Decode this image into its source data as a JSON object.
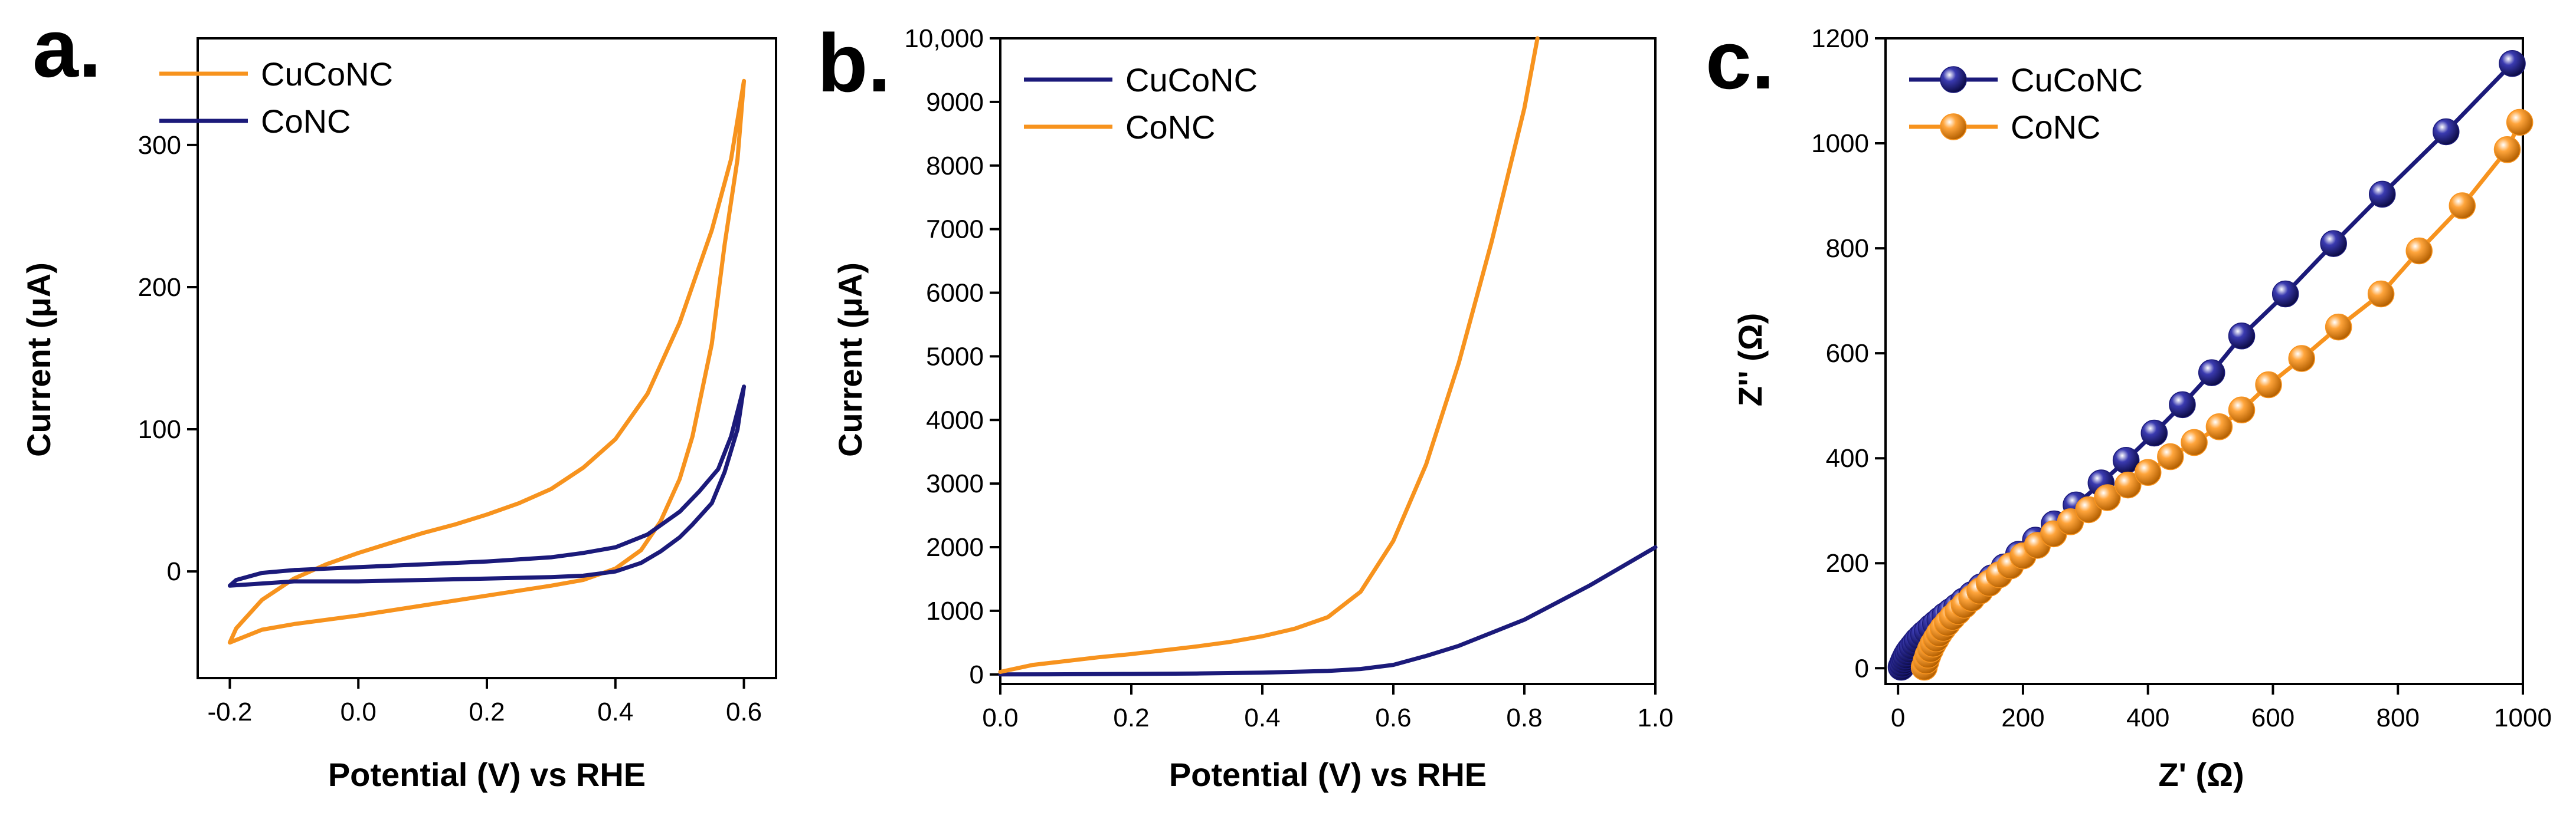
{
  "colors": {
    "orange": "#f7931e",
    "navy": "#1b1a7a",
    "axis": "#000000"
  },
  "chart_data": [
    {
      "type": "line",
      "panel_label": "a.",
      "title": "",
      "xlabel": "Potential (V) vs RHE",
      "ylabel": "Current (μA)",
      "xlim": [
        -0.25,
        0.65
      ],
      "ylim": [
        -75,
        375
      ],
      "x_ticks": [
        -0.2,
        0.0,
        0.2,
        0.4,
        0.6
      ],
      "x_tick_labels": [
        "-0.2",
        "0.0",
        "0.2",
        "0.4",
        "0.6"
      ],
      "y_ticks": [
        0,
        100,
        200,
        300
      ],
      "y_tick_labels": [
        "0",
        "100",
        "200",
        "300"
      ],
      "legend_position": "top-left",
      "series": [
        {
          "name": "CuCoNC",
          "color": "#f7931e",
          "points": [
            [
              -0.2,
              -50
            ],
            [
              -0.19,
              -40
            ],
            [
              -0.15,
              -20
            ],
            [
              -0.1,
              -5
            ],
            [
              -0.05,
              5
            ],
            [
              0.0,
              13
            ],
            [
              0.05,
              20
            ],
            [
              0.1,
              27
            ],
            [
              0.15,
              33
            ],
            [
              0.2,
              40
            ],
            [
              0.25,
              48
            ],
            [
              0.3,
              58
            ],
            [
              0.35,
              73
            ],
            [
              0.4,
              93
            ],
            [
              0.45,
              125
            ],
            [
              0.5,
              175
            ],
            [
              0.55,
              240
            ],
            [
              0.58,
              290
            ],
            [
              0.6,
              345
            ],
            [
              0.59,
              290
            ],
            [
              0.57,
              230
            ],
            [
              0.55,
              160
            ],
            [
              0.52,
              95
            ],
            [
              0.5,
              65
            ],
            [
              0.47,
              35
            ],
            [
              0.44,
              15
            ],
            [
              0.4,
              2
            ],
            [
              0.35,
              -6
            ],
            [
              0.3,
              -10
            ],
            [
              0.2,
              -17
            ],
            [
              0.1,
              -24
            ],
            [
              0.0,
              -31
            ],
            [
              -0.1,
              -37
            ],
            [
              -0.15,
              -41
            ],
            [
              -0.2,
              -50
            ]
          ]
        },
        {
          "name": "CoNC",
          "color": "#1b1a7a",
          "points": [
            [
              -0.2,
              -10
            ],
            [
              -0.19,
              -6
            ],
            [
              -0.15,
              -1
            ],
            [
              -0.1,
              1
            ],
            [
              0.0,
              3
            ],
            [
              0.1,
              5
            ],
            [
              0.2,
              7
            ],
            [
              0.3,
              10
            ],
            [
              0.35,
              13
            ],
            [
              0.4,
              17
            ],
            [
              0.45,
              26
            ],
            [
              0.5,
              42
            ],
            [
              0.53,
              56
            ],
            [
              0.56,
              72
            ],
            [
              0.58,
              95
            ],
            [
              0.6,
              130
            ],
            [
              0.59,
              100
            ],
            [
              0.57,
              70
            ],
            [
              0.55,
              48
            ],
            [
              0.52,
              33
            ],
            [
              0.5,
              24
            ],
            [
              0.47,
              14
            ],
            [
              0.44,
              6
            ],
            [
              0.4,
              0
            ],
            [
              0.35,
              -3
            ],
            [
              0.3,
              -4
            ],
            [
              0.2,
              -5
            ],
            [
              0.1,
              -6
            ],
            [
              0.0,
              -7
            ],
            [
              -0.1,
              -7
            ],
            [
              -0.2,
              -10
            ]
          ]
        }
      ]
    },
    {
      "type": "line",
      "panel_label": "b.",
      "title": "",
      "xlabel": "Potential (V) vs RHE",
      "ylabel": "Current (μA)",
      "xlim": [
        0.0,
        1.0
      ],
      "ylim": [
        -150,
        10000
      ],
      "x_ticks": [
        0.0,
        0.2,
        0.4,
        0.6,
        0.8,
        1.0
      ],
      "x_tick_labels": [
        "0.0",
        "0.2",
        "0.4",
        "0.6",
        "0.8",
        "1.0"
      ],
      "y_ticks": [
        0,
        1000,
        2000,
        3000,
        4000,
        5000,
        6000,
        7000,
        8000,
        9000,
        10000
      ],
      "y_tick_labels": [
        "0",
        "1000",
        "2000",
        "3000",
        "4000",
        "5000",
        "6000",
        "7000",
        "8000",
        "9000",
        "10,000"
      ],
      "legend_position": "top-left",
      "series": [
        {
          "name": "CuCoNC",
          "color": "#1b1a7a",
          "points": [
            [
              0.0,
              0
            ],
            [
              0.1,
              3
            ],
            [
              0.2,
              8
            ],
            [
              0.3,
              15
            ],
            [
              0.4,
              28
            ],
            [
              0.5,
              55
            ],
            [
              0.55,
              85
            ],
            [
              0.6,
              150
            ],
            [
              0.65,
              290
            ],
            [
              0.7,
              450
            ],
            [
              0.8,
              860
            ],
            [
              0.9,
              1400
            ],
            [
              1.0,
              2000
            ]
          ]
        },
        {
          "name": "CoNC",
          "color": "#f7931e",
          "points": [
            [
              0.0,
              40
            ],
            [
              0.05,
              150
            ],
            [
              0.1,
              210
            ],
            [
              0.15,
              270
            ],
            [
              0.2,
              320
            ],
            [
              0.25,
              380
            ],
            [
              0.3,
              440
            ],
            [
              0.35,
              510
            ],
            [
              0.4,
              600
            ],
            [
              0.45,
              720
            ],
            [
              0.5,
              900
            ],
            [
              0.55,
              1300
            ],
            [
              0.6,
              2100
            ],
            [
              0.65,
              3300
            ],
            [
              0.7,
              4900
            ],
            [
              0.75,
              6800
            ],
            [
              0.8,
              8900
            ],
            [
              0.82,
              10000
            ]
          ]
        }
      ]
    },
    {
      "type": "line",
      "panel_label": "c.",
      "title": "",
      "xlabel": "Z' (Ω)",
      "ylabel": "Z'' (Ω)",
      "xlim": [
        -20,
        1000
      ],
      "ylim": [
        -30,
        1200
      ],
      "x_ticks": [
        0,
        200,
        400,
        600,
        800,
        1000
      ],
      "x_tick_labels": [
        "0",
        "200",
        "400",
        "600",
        "800",
        "1000"
      ],
      "y_ticks": [
        0,
        200,
        400,
        600,
        800,
        1000,
        1200
      ],
      "y_tick_labels": [
        "0",
        "200",
        "400",
        "600",
        "800",
        "1000",
        "1200"
      ],
      "legend_position": "top-left",
      "series": [
        {
          "name": "CuCoNC",
          "color": "#1b1a7a",
          "marker": "sphere",
          "points": [
            [
              5,
              2
            ],
            [
              7,
              8
            ],
            [
              9,
              14
            ],
            [
              11,
              19
            ],
            [
              13,
              24
            ],
            [
              16,
              30
            ],
            [
              19,
              35
            ],
            [
              23,
              41
            ],
            [
              27,
              47
            ],
            [
              31,
              53
            ],
            [
              36,
              59
            ],
            [
              41,
              65
            ],
            [
              47,
              71
            ],
            [
              53,
              78
            ],
            [
              60,
              85
            ],
            [
              67,
              92
            ],
            [
              75,
              100
            ],
            [
              84,
              108
            ],
            [
              94,
              117
            ],
            [
              105,
              128
            ],
            [
              118,
              140
            ],
            [
              133,
              155
            ],
            [
              150,
              172
            ],
            [
              170,
              193
            ],
            [
              193,
              217
            ],
            [
              220,
              244
            ],
            [
              250,
              275
            ],
            [
              285,
              311
            ],
            [
              325,
              353
            ],
            [
              365,
              396
            ],
            [
              410,
              448
            ],
            [
              455,
              502
            ],
            [
              502,
              563
            ],
            [
              550,
              633
            ],
            [
              620,
              713
            ],
            [
              697,
              809
            ],
            [
              775,
              903
            ],
            [
              877,
              1022
            ],
            [
              983,
              1152
            ]
          ]
        },
        {
          "name": "CoNC",
          "color": "#f7931e",
          "marker": "sphere",
          "points": [
            [
              42,
              2
            ],
            [
              45,
              14
            ],
            [
              48,
              25
            ],
            [
              52,
              36
            ],
            [
              56,
              46
            ],
            [
              61,
              56
            ],
            [
              66,
              66
            ],
            [
              72,
              76
            ],
            [
              79,
              86
            ],
            [
              87,
              97
            ],
            [
              96,
              108
            ],
            [
              106,
              120
            ],
            [
              118,
              133
            ],
            [
              131,
              147
            ],
            [
              146,
              162
            ],
            [
              162,
              178
            ],
            [
              180,
              195
            ],
            [
              200,
              214
            ],
            [
              223,
              234
            ],
            [
              249,
              256
            ],
            [
              276,
              279
            ],
            [
              305,
              302
            ],
            [
              335,
              325
            ],
            [
              368,
              349
            ],
            [
              400,
              373
            ],
            [
              436,
              403
            ],
            [
              474,
              430
            ],
            [
              514,
              460
            ],
            [
              550,
              492
            ],
            [
              593,
              540
            ],
            [
              646,
              590
            ],
            [
              705,
              650
            ],
            [
              773,
              713
            ],
            [
              834,
              795
            ],
            [
              903,
              881
            ],
            [
              975,
              988
            ],
            [
              995,
              1040
            ]
          ]
        }
      ]
    }
  ]
}
